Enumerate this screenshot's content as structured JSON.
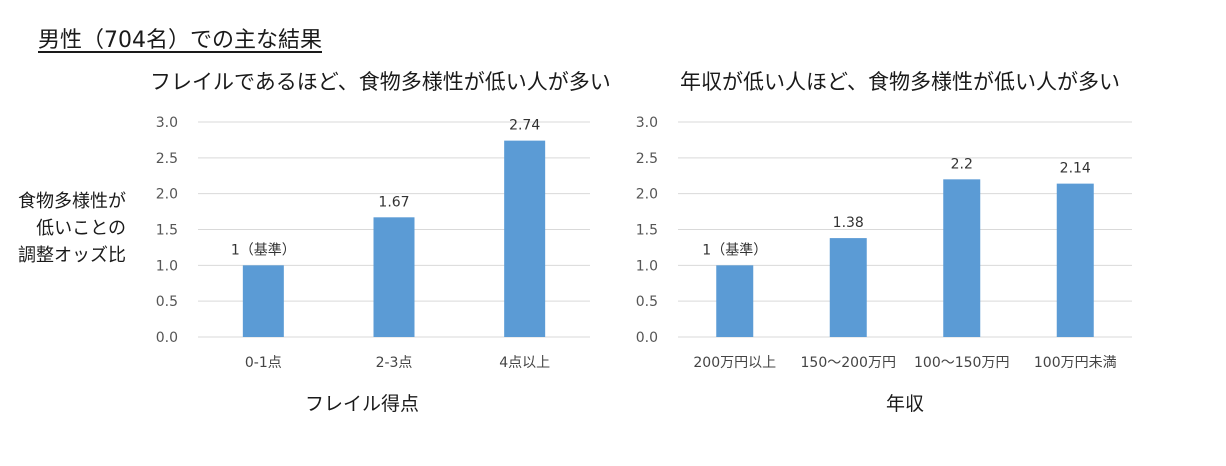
{
  "page": {
    "title": "男性（704名）での主な結果",
    "ylabel_lines": [
      "食物多様性が",
      "低いことの",
      "調整オッズ比"
    ]
  },
  "colors": {
    "bar": "#5b9bd5",
    "grid": "#d9d9d9"
  },
  "chart_data": [
    {
      "type": "bar",
      "title": "フレイルであるほど、食物多様性が低い人が多い",
      "xlabel": "フレイル得点",
      "ylabel": "食物多様性が低いことの調整オッズ比",
      "categories": [
        "0-1点",
        "2-3点",
        "4点以上"
      ],
      "values": [
        1,
        1.67,
        2.74
      ],
      "data_labels": [
        "1（基準）",
        "1.67",
        "2.74"
      ],
      "y_ticks": [
        "0.0",
        "0.5",
        "1.0",
        "1.5",
        "2.0",
        "2.5",
        "3.0"
      ],
      "ylim": [
        0,
        3.0
      ],
      "grid": true
    },
    {
      "type": "bar",
      "title": "年収が低い人ほど、食物多様性が低い人が多い",
      "xlabel": "年収",
      "ylabel": "食物多様性が低いことの調整オッズ比",
      "categories": [
        "200万円以上",
        "150～200万円",
        "100～150万円",
        "100万円未満"
      ],
      "values": [
        1,
        1.38,
        2.2,
        2.14
      ],
      "data_labels": [
        "1（基準）",
        "1.38",
        "2.2",
        "2.14"
      ],
      "y_ticks": [
        "0.0",
        "0.5",
        "1.0",
        "1.5",
        "2.0",
        "2.5",
        "3.0"
      ],
      "ylim": [
        0,
        3.0
      ],
      "grid": true
    }
  ]
}
